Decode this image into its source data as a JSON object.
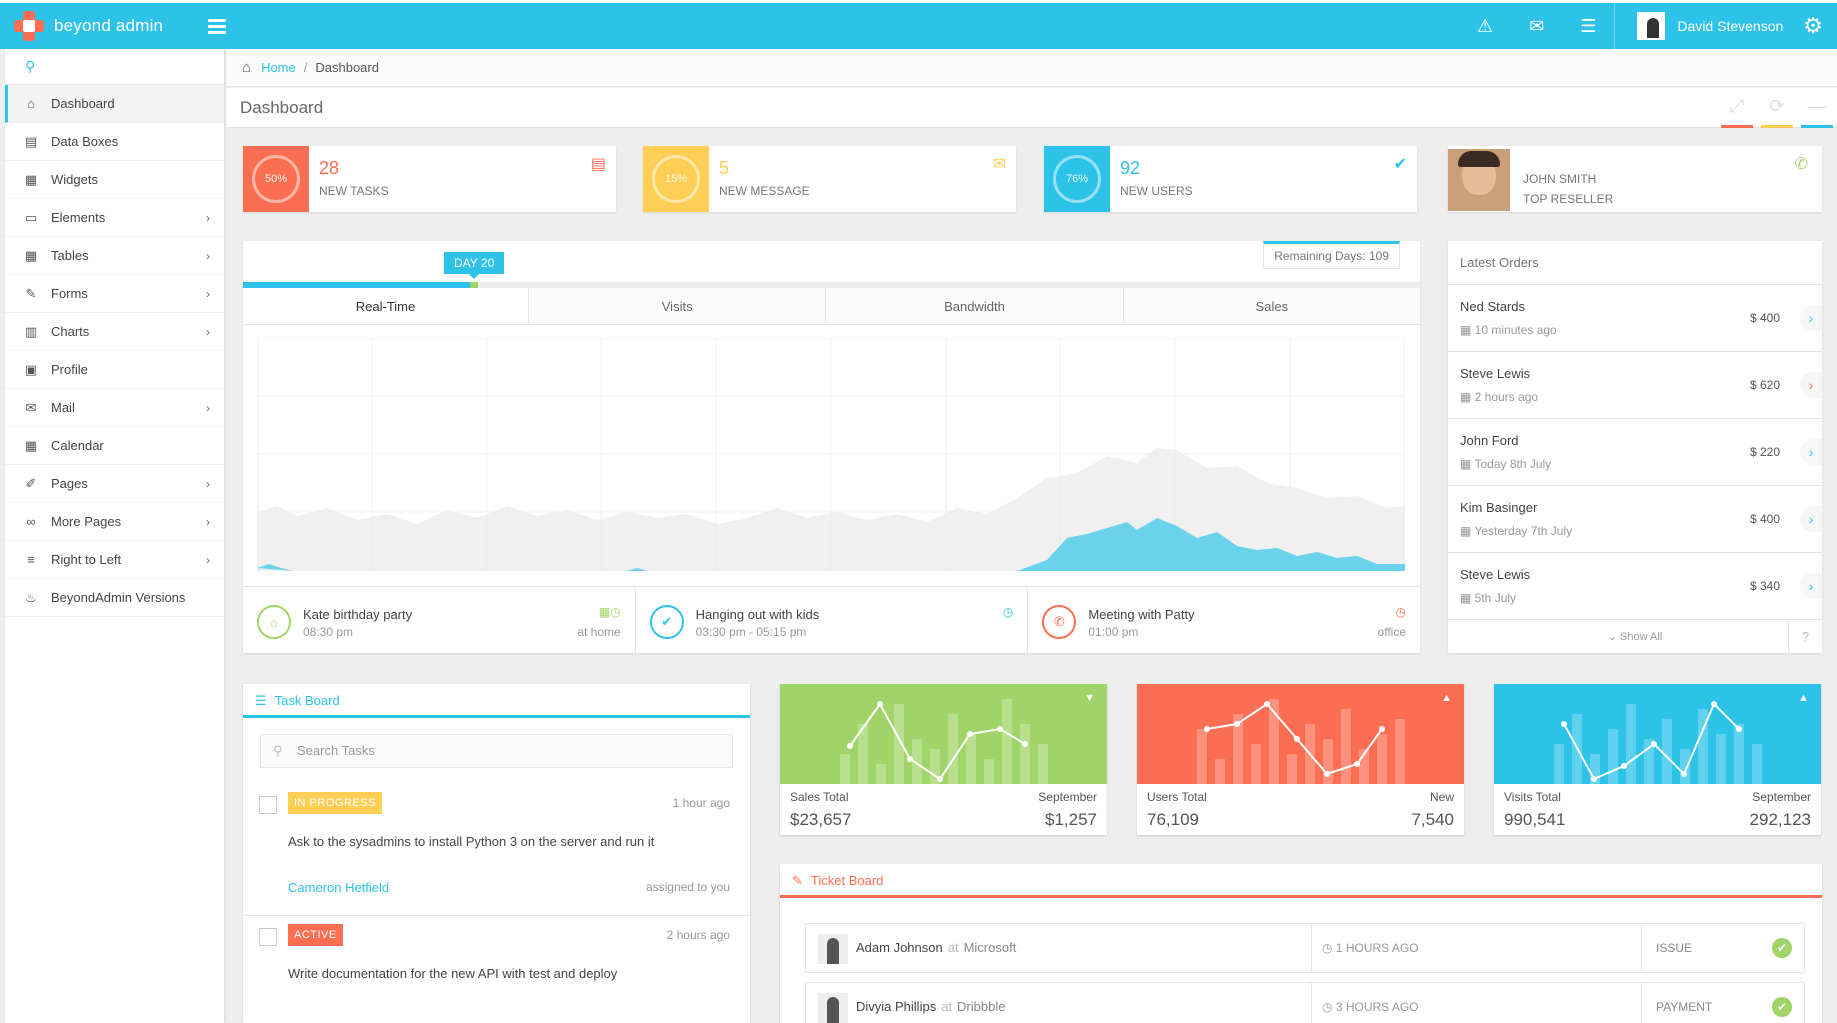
{
  "brand": "beyond admin",
  "user": {
    "name": "David Stevenson"
  },
  "icons": {
    "warning": "⚠",
    "messages": "✉",
    "tasks": "☰",
    "settings": "⚙"
  },
  "search": {
    "placeholder": ""
  },
  "sidebar": {
    "items": [
      {
        "label": "Dashboard",
        "icon": "⌂",
        "active": true,
        "chevron": false
      },
      {
        "label": "Data Boxes",
        "icon": "▤",
        "chevron": false
      },
      {
        "label": "Widgets",
        "icon": "▦",
        "chevron": false
      },
      {
        "label": "Elements",
        "icon": "▭",
        "chevron": true
      },
      {
        "label": "Tables",
        "icon": "▦",
        "chevron": true
      },
      {
        "label": "Forms",
        "icon": "✎",
        "chevron": true
      },
      {
        "label": "Charts",
        "icon": "▥",
        "chevron": true
      },
      {
        "label": "Profile",
        "icon": "▣",
        "chevron": false
      },
      {
        "label": "Mail",
        "icon": "✉",
        "chevron": true
      },
      {
        "label": "Calendar",
        "icon": "▦",
        "chevron": false
      },
      {
        "label": "Pages",
        "icon": "✐",
        "chevron": true
      },
      {
        "label": "More Pages",
        "icon": "∞",
        "chevron": true
      },
      {
        "label": "Right to Left",
        "icon": "≡",
        "chevron": true
      },
      {
        "label": "BeyondAdmin Versions",
        "icon": "♨",
        "chevron": false
      }
    ]
  },
  "breadcrumb": {
    "home": "Home",
    "sep": "/",
    "current": "Dashboard"
  },
  "page": {
    "title": "Dashboard"
  },
  "stats": [
    {
      "percent": "50%",
      "value": "28",
      "label": "NEW TASKS",
      "color": "#fb6e52",
      "icon": "▤"
    },
    {
      "percent": "15%",
      "value": "5",
      "label": "NEW MESSAGE",
      "color": "#ffce55",
      "icon": "✉"
    },
    {
      "percent": "76%",
      "value": "92",
      "label": "NEW USERS",
      "color": "#2dc3e8",
      "icon": "✔"
    }
  ],
  "contact": {
    "name": "JOHN SMITH",
    "title": "TOP RESELLER"
  },
  "realtime": {
    "day_badge": "DAY 20",
    "remaining": "Remaining Days: 109",
    "progress": 0.2,
    "tabs": [
      "Real-Time",
      "Visits",
      "Bandwidth",
      "Sales"
    ],
    "events": [
      {
        "title": "Kate birthday party",
        "time": "08:30 pm",
        "place": "at home",
        "color": "#a0d468",
        "icon": "⌂",
        "right_icon": "▦◷"
      },
      {
        "title": "Hanging out with kids",
        "time": "03:30 pm - 05:15 pm",
        "place": "",
        "color": "#2dc3e8",
        "icon": "✔",
        "right_icon": "◷"
      },
      {
        "title": "Meeting with Patty",
        "time": "01:00 pm",
        "place": "office",
        "color": "#fb6e52",
        "icon": "✆",
        "right_icon": "◷"
      }
    ]
  },
  "orders": {
    "title": "Latest Orders",
    "items": [
      {
        "name": "Ned Stards",
        "time": "10 minutes ago",
        "amount": "$ 400",
        "color": "#2dc3e8"
      },
      {
        "name": "Steve Lewis",
        "time": "2 hours ago",
        "amount": "$ 620",
        "color": "#fb6e52"
      },
      {
        "name": "John Ford",
        "time": "Today 8th July",
        "amount": "$ 220",
        "color": "#2dc3e8"
      },
      {
        "name": "Kim Basinger",
        "time": "Yesterday 7th July",
        "amount": "$ 400",
        "color": "#2dc3e8"
      },
      {
        "name": "Steve Lewis",
        "time": "5th July",
        "amount": "$ 340",
        "color": "#2dc3e8"
      }
    ],
    "show_all": "Show All",
    "help": "?"
  },
  "taskboard": {
    "title": "Task Board",
    "search_placeholder": "Search Tasks",
    "tasks": [
      {
        "status": "IN PROGRESS",
        "status_color": "#ffce55",
        "ago": "1 hour ago",
        "desc": "Ask to the sysadmins to install Python 3 on the server and run it",
        "owner": "Cameron Hetfield",
        "assigned": "assigned to you"
      },
      {
        "status": "ACTIVE",
        "status_color": "#fb6e52",
        "ago": "2 hours ago",
        "desc": "Write documentation for the new API with test and deploy",
        "owner": "",
        "assigned": ""
      }
    ]
  },
  "sparks": [
    {
      "color": "#a0d468",
      "l1": "Sales Total",
      "r1": "September",
      "l2": "$23,657",
      "r2": "$1,257",
      "caret": "▼"
    },
    {
      "color": "#fb6e52",
      "l1": "Users Total",
      "r1": "New",
      "l2": "76,109",
      "r2": "7,540",
      "caret": "▲"
    },
    {
      "color": "#2dc3e8",
      "l1": "Visits Total",
      "r1": "September",
      "l2": "990,541",
      "r2": "292,123",
      "caret": "▲"
    }
  ],
  "tickets": {
    "title": "Ticket Board",
    "items": [
      {
        "name": "Adam Johnson",
        "at": "at",
        "company": "Microsoft",
        "time": "1 HOURS AGO",
        "type": "ISSUE"
      },
      {
        "name": "Divyia Phillips",
        "at": "at",
        "company": "Dribbble",
        "time": "3 HOURS AGO",
        "type": "PAYMENT"
      }
    ]
  }
}
